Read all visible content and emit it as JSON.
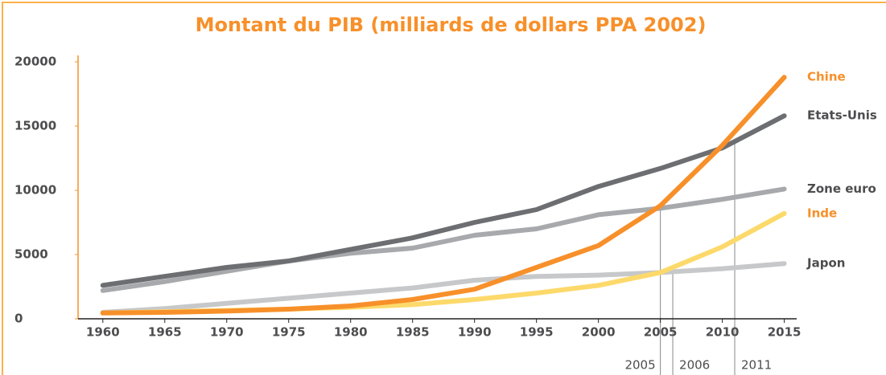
{
  "chart_data": {
    "type": "line",
    "title": "Montant du PIB (milliards de dollars PPA 2002)",
    "x": [
      1960,
      1965,
      1970,
      1975,
      1980,
      1985,
      1990,
      1995,
      2000,
      2005,
      2010,
      2015
    ],
    "series": [
      {
        "name": "Chine",
        "color": "#f7902a",
        "values": [
          450,
          500,
          600,
          750,
          1000,
          1500,
          2300,
          4000,
          5700,
          8800,
          13500,
          18800
        ]
      },
      {
        "name": "Etats-Unis",
        "color": "#6d6e71",
        "values": [
          2600,
          3300,
          4000,
          4500,
          5400,
          6300,
          7500,
          8500,
          10300,
          11700,
          13300,
          15800
        ]
      },
      {
        "name": "Zone euro",
        "color": "#a7a9ac",
        "values": [
          2200,
          2900,
          3700,
          4500,
          5100,
          5500,
          6500,
          7000,
          8100,
          8600,
          9300,
          10100
        ]
      },
      {
        "name": "Inde",
        "color": "#fcd96a",
        "values": [
          450,
          550,
          650,
          750,
          900,
          1100,
          1500,
          2000,
          2600,
          3600,
          5600,
          8200
        ]
      },
      {
        "name": "Japon",
        "color": "#c7c8ca",
        "values": [
          500,
          800,
          1200,
          1600,
          2000,
          2400,
          3000,
          3300,
          3400,
          3600,
          3900,
          4300
        ]
      }
    ],
    "xlim": [
      1958,
      2016
    ],
    "ylim": [
      0,
      20000
    ],
    "xticks": [
      1960,
      1965,
      1970,
      1975,
      1980,
      1985,
      1990,
      1995,
      2000,
      2005,
      2010,
      2015
    ],
    "yticks": [
      0,
      5000,
      10000,
      15000,
      20000
    ],
    "annotations": [
      {
        "x": 2005,
        "y": 8800,
        "label": "2005"
      },
      {
        "x": 2006,
        "y": 3800,
        "label": "2006"
      },
      {
        "x": 2011,
        "y": 14000,
        "label": "2011"
      }
    ]
  }
}
